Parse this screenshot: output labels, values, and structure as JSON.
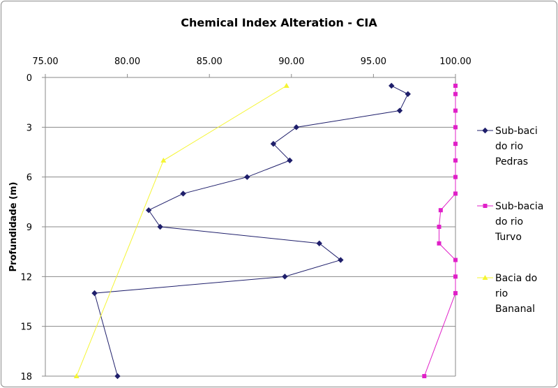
{
  "chart_data": {
    "type": "line",
    "title": "Chemical Index Alteration - CIA",
    "xlabel": "",
    "ylabel": "Profundidade (m)",
    "xlim": [
      75,
      100
    ],
    "ylim": [
      0,
      18
    ],
    "x_axis_position": "top",
    "y_axis_inverted": true,
    "x_ticks": [
      {
        "value": 75,
        "label": "75.00"
      },
      {
        "value": 80,
        "label": "80.00"
      },
      {
        "value": 85,
        "label": "85.00"
      },
      {
        "value": 90,
        "label": "90.00"
      },
      {
        "value": 95,
        "label": "95.00"
      },
      {
        "value": 100,
        "label": "100.00"
      }
    ],
    "y_ticks": [
      {
        "value": 0,
        "label": "0"
      },
      {
        "value": 3,
        "label": "3"
      },
      {
        "value": 6,
        "label": "6"
      },
      {
        "value": 9,
        "label": "9"
      },
      {
        "value": 12,
        "label": "12"
      },
      {
        "value": 15,
        "label": "15"
      },
      {
        "value": 18,
        "label": "18"
      }
    ],
    "grid": "horizontal",
    "legend_position": "right",
    "series": [
      {
        "name_lines": [
          "Sub-baci",
          "do rio",
          "Pedras"
        ],
        "color": "#1f1f6b",
        "marker": "diamond",
        "points": [
          {
            "x": 96.1,
            "y": 0.5
          },
          {
            "x": 97.1,
            "y": 1.0
          },
          {
            "x": 96.6,
            "y": 2.0
          },
          {
            "x": 90.3,
            "y": 3.0
          },
          {
            "x": 88.9,
            "y": 4.0
          },
          {
            "x": 89.9,
            "y": 5.0
          },
          {
            "x": 87.3,
            "y": 6.0
          },
          {
            "x": 83.4,
            "y": 7.0
          },
          {
            "x": 81.3,
            "y": 8.0
          },
          {
            "x": 82.0,
            "y": 9.0
          },
          {
            "x": 91.7,
            "y": 10.0
          },
          {
            "x": 93.0,
            "y": 11.0
          },
          {
            "x": 89.6,
            "y": 12.0
          },
          {
            "x": 78.0,
            "y": 13.0
          },
          {
            "x": 79.4,
            "y": 18.0
          }
        ]
      },
      {
        "name_lines": [
          "Sub-bacia",
          "do rio",
          "Turvo"
        ],
        "color": "#e020c8",
        "marker": "square",
        "points": [
          {
            "x": 100.0,
            "y": 0.5
          },
          {
            "x": 100.0,
            "y": 1.0
          },
          {
            "x": 100.0,
            "y": 2.0
          },
          {
            "x": 100.0,
            "y": 3.0
          },
          {
            "x": 100.0,
            "y": 4.0
          },
          {
            "x": 100.0,
            "y": 5.0
          },
          {
            "x": 100.0,
            "y": 6.0
          },
          {
            "x": 100.0,
            "y": 7.0
          },
          {
            "x": 99.1,
            "y": 8.0
          },
          {
            "x": 99.0,
            "y": 9.0
          },
          {
            "x": 99.0,
            "y": 10.0
          },
          {
            "x": 100.0,
            "y": 11.0
          },
          {
            "x": 100.0,
            "y": 12.0
          },
          {
            "x": 100.0,
            "y": 13.0
          },
          {
            "x": 98.1,
            "y": 18.0
          }
        ]
      },
      {
        "name_lines": [
          "Bacia do",
          "rio",
          "Bananal"
        ],
        "color": "#f5f532",
        "marker": "triangle",
        "points": [
          {
            "x": 89.7,
            "y": 0.5
          },
          {
            "x": 82.2,
            "y": 5.0
          },
          {
            "x": 76.9,
            "y": 18.0
          }
        ]
      }
    ]
  }
}
